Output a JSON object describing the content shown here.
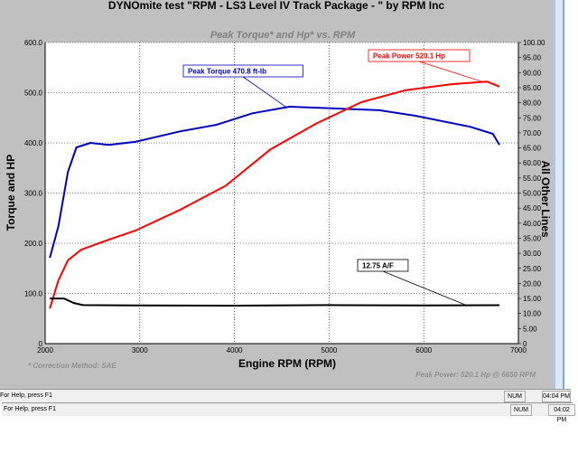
{
  "window_title": "DYNOmite test \"RPM - LS3 Level  IV Track Package - \" by RPM Inc",
  "status_bars": [
    {
      "help": "For Help, press F1",
      "num": "NUM",
      "time": "04:04 PM"
    },
    {
      "help": "For Help, press F1",
      "num": "NUM",
      "time": "04:02 PM"
    }
  ],
  "chart_data": {
    "type": "line",
    "title": "Peak Torque* and Hp* vs. RPM",
    "xlabel": "Engine RPM (RPM)",
    "ylabel": "Torque and HP",
    "y2label": "All Other Lines",
    "xlim": [
      2000,
      7000
    ],
    "ylim": [
      0,
      600
    ],
    "y2lim": [
      0,
      100
    ],
    "xticks": [
      "2000",
      "3000",
      "4000",
      "5000",
      "6000",
      "7000"
    ],
    "yticks": [
      "0",
      "100.0",
      "200.0",
      "300.0",
      "400.0",
      "500.0",
      "600.0"
    ],
    "y2ticks": [
      "0",
      "5.00",
      "10.00",
      "15.00",
      "20.00",
      "25.00",
      "30.00",
      "35.00",
      "40.00",
      "45.00",
      "50.00",
      "55.00",
      "60.00",
      "65.00",
      "70.00",
      "75.00",
      "80.00",
      "85.00",
      "90.00",
      "95.00",
      "100.00"
    ],
    "grid": true,
    "footnote": "* Correction Method: SAE",
    "peak_note": "Peak Power: 520.1 Hp @ 6650 RPM",
    "colors": {
      "torque": "#0000c0",
      "power": "#ff0000",
      "af": "#000000"
    },
    "series": [
      {
        "key": "torque",
        "axis": "left",
        "x": [
          2050,
          2140,
          2240,
          2330,
          2480,
          2670,
          2950,
          3430,
          3810,
          4190,
          4580,
          5150,
          5530,
          5910,
          6490,
          6730,
          6800
        ],
        "y": [
          171,
          234,
          342,
          391,
          400,
          396,
          402,
          423,
          436,
          459,
          472,
          468,
          465,
          454,
          432,
          418,
          396
        ]
      },
      {
        "key": "power",
        "axis": "left",
        "x": [
          2050,
          2140,
          2240,
          2380,
          2670,
          2950,
          3430,
          3910,
          4380,
          4860,
          5340,
          5810,
          6290,
          6670,
          6800
        ],
        "y": [
          70,
          126,
          166,
          187,
          207,
          225,
          267,
          315,
          387,
          438,
          481,
          505,
          517,
          522,
          512
        ]
      },
      {
        "key": "af",
        "axis": "right",
        "x": [
          2050,
          2200,
          2300,
          2400,
          3000,
          4000,
          5000,
          6000,
          6800
        ],
        "y": [
          15.0,
          15.0,
          13.5,
          12.8,
          12.7,
          12.6,
          12.8,
          12.7,
          12.75
        ]
      }
    ],
    "annotations": [
      {
        "label": "Peak Torque  470.8 ft-lb",
        "color": "#0000c0",
        "x": 4550,
        "y": 470.8,
        "axis": "left"
      },
      {
        "label": "Peak Power  520.1 Hp",
        "color": "#ff0000",
        "x": 6650,
        "y": 520.1,
        "axis": "left"
      },
      {
        "label": "12.75 A/F",
        "color": "#000000",
        "x": 6450,
        "y": 12.75,
        "axis": "right"
      }
    ]
  }
}
